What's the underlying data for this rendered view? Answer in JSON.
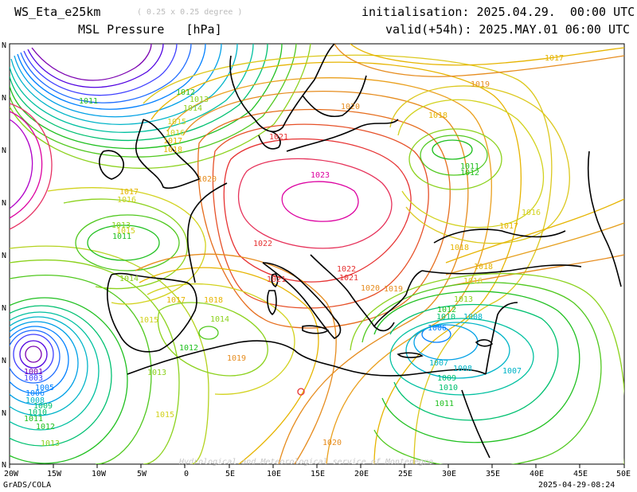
{
  "header": {
    "model": "WS_Eta_e25km",
    "resolution": "( 0.25 x 0.25 degree )",
    "field": "MSL Pressure   [hPa]",
    "init": "initialisation: 2025.04.29.  00:00 UTC",
    "valid": "valid(+54h): 2025.MAY.01 06:00 UTC"
  },
  "footer": {
    "left": "GrADS/COLA",
    "right": "2025-04-29-08:24",
    "watermark": "Hydrological and Meteorological service of Montenegro"
  },
  "axis": {
    "x_labels": [
      "20W",
      "15W",
      "10W",
      "5W",
      "0",
      "5E",
      "10E",
      "15E",
      "20E",
      "25E",
      "30E",
      "35E",
      "40E",
      "45E",
      "50E"
    ],
    "y_labels": [
      "N",
      "N",
      "N",
      "N",
      "N",
      "N",
      "N",
      "N",
      "N",
      "N"
    ]
  },
  "colors": {
    "c1001": "#7a00b0",
    "c1003": "#3f3fff",
    "c1005": "#0080ff",
    "c1007": "#00b4c8",
    "c1009": "#00c070",
    "c1011": "#20c020",
    "c1013": "#8cd21e",
    "c1015": "#d2d21e",
    "c1017": "#e6b400",
    "c1019": "#e68c1e",
    "c1021": "#e63232",
    "c1023": "#dc00a0",
    "land": "#000000"
  },
  "contour_labels": [
    {
      "text": "1023",
      "color": "c1023"
    },
    {
      "text": "1022",
      "color": "c1021"
    },
    {
      "text": "1022",
      "color": "c1021"
    },
    {
      "text": "1021",
      "color": "c1021"
    },
    {
      "text": "1021",
      "color": "c1021"
    },
    {
      "text": "1021",
      "color": "c1021"
    },
    {
      "text": "1020",
      "color": "c1019"
    },
    {
      "text": "1020",
      "color": "c1019"
    },
    {
      "text": "1020",
      "color": "c1019"
    },
    {
      "text": "1020",
      "color": "c1019"
    },
    {
      "text": "1019",
      "color": "c1019"
    },
    {
      "text": "1019",
      "color": "c1019"
    },
    {
      "text": "1019",
      "color": "c1019"
    },
    {
      "text": "1018",
      "color": "c1017"
    },
    {
      "text": "1018",
      "color": "c1017"
    },
    {
      "text": "1018",
      "color": "c1017"
    },
    {
      "text": "1018",
      "color": "c1017"
    },
    {
      "text": "1018",
      "color": "c1017"
    },
    {
      "text": "1017",
      "color": "c1017"
    },
    {
      "text": "1017",
      "color": "c1017"
    },
    {
      "text": "1017",
      "color": "c1017"
    },
    {
      "text": "1017",
      "color": "c1017"
    },
    {
      "text": "1017",
      "color": "c1017"
    },
    {
      "text": "1016",
      "color": "c1015"
    },
    {
      "text": "1016",
      "color": "c1015"
    },
    {
      "text": "1016",
      "color": "c1015"
    },
    {
      "text": "1016",
      "color": "c1015"
    },
    {
      "text": "1015",
      "color": "c1015"
    },
    {
      "text": "1015",
      "color": "c1015"
    },
    {
      "text": "1015",
      "color": "c1015"
    },
    {
      "text": "1015",
      "color": "c1015"
    },
    {
      "text": "1014",
      "color": "c1013"
    },
    {
      "text": "1014",
      "color": "c1013"
    },
    {
      "text": "1014",
      "color": "c1013"
    },
    {
      "text": "1013",
      "color": "c1013"
    },
    {
      "text": "1013",
      "color": "c1013"
    },
    {
      "text": "1013",
      "color": "c1013"
    },
    {
      "text": "1013",
      "color": "c1013"
    },
    {
      "text": "1013",
      "color": "c1013"
    },
    {
      "text": "1012",
      "color": "c1011"
    },
    {
      "text": "1012",
      "color": "c1011"
    },
    {
      "text": "1012",
      "color": "c1011"
    },
    {
      "text": "1012",
      "color": "c1011"
    },
    {
      "text": "1012",
      "color": "c1011"
    },
    {
      "text": "1011",
      "color": "c1011"
    },
    {
      "text": "1011",
      "color": "c1011"
    },
    {
      "text": "1011",
      "color": "c1011"
    },
    {
      "text": "1011",
      "color": "c1011"
    },
    {
      "text": "1011",
      "color": "c1011"
    },
    {
      "text": "1010",
      "color": "c1009"
    },
    {
      "text": "1010",
      "color": "c1009"
    },
    {
      "text": "1010",
      "color": "c1009"
    },
    {
      "text": "1009",
      "color": "c1009"
    },
    {
      "text": "1009",
      "color": "c1009"
    },
    {
      "text": "1008",
      "color": "c1007"
    },
    {
      "text": "1008",
      "color": "c1007"
    },
    {
      "text": "1008",
      "color": "c1007"
    },
    {
      "text": "1007",
      "color": "c1007"
    },
    {
      "text": "1007",
      "color": "c1007"
    },
    {
      "text": "1006",
      "color": "c1005"
    },
    {
      "text": "1006",
      "color": "c1005"
    },
    {
      "text": "1005",
      "color": "c1005"
    },
    {
      "text": "1003",
      "color": "c1003"
    },
    {
      "text": "1001",
      "color": "c1001"
    }
  ]
}
